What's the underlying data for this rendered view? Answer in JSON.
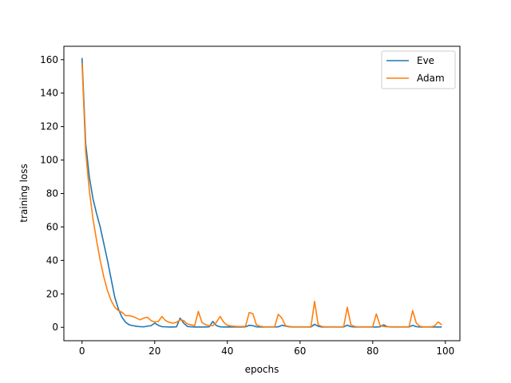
{
  "chart_data": {
    "type": "line",
    "title": "",
    "xlabel": "epochs",
    "ylabel": "training loss",
    "xlim": [
      -5,
      104
    ],
    "ylim": [
      -8,
      168
    ],
    "xticks": [
      0,
      20,
      40,
      60,
      80,
      100
    ],
    "yticks": [
      0,
      20,
      40,
      60,
      80,
      100,
      120,
      140,
      160
    ],
    "grid": false,
    "legend_position": "top-right",
    "series": [
      {
        "name": "Eve",
        "color": "#1f77b4",
        "x": [
          0,
          1,
          2,
          3,
          4,
          5,
          6,
          7,
          8,
          9,
          10,
          11,
          12,
          13,
          14,
          15,
          16,
          17,
          18,
          19,
          20,
          21,
          22,
          23,
          24,
          25,
          26,
          27,
          28,
          29,
          30,
          31,
          32,
          33,
          34,
          35,
          36,
          37,
          38,
          39,
          40,
          41,
          42,
          43,
          44,
          45,
          46,
          47,
          48,
          49,
          50,
          51,
          52,
          53,
          54,
          55,
          56,
          57,
          58,
          59,
          60,
          61,
          62,
          63,
          64,
          65,
          66,
          67,
          68,
          69,
          70,
          71,
          72,
          73,
          74,
          75,
          76,
          77,
          78,
          79,
          80,
          81,
          82,
          83,
          84,
          85,
          86,
          87,
          88,
          89,
          90,
          91,
          92,
          93,
          94,
          95,
          96,
          97,
          98,
          99
        ],
        "y": [
          161,
          110,
          90,
          77,
          68,
          60,
          50,
          40,
          29,
          18,
          11,
          6,
          3,
          1.5,
          1,
          0.6,
          0.4,
          0.3,
          0.7,
          1,
          2.5,
          1.2,
          0.4,
          0.3,
          0.2,
          0.2,
          0.3,
          5.5,
          2.5,
          0.5,
          0.3,
          0.2,
          0.2,
          0.2,
          0.2,
          0.3,
          3.5,
          1,
          0.3,
          0.2,
          0.2,
          0.2,
          0.2,
          0.2,
          0.2,
          0.3,
          1.2,
          1,
          0.3,
          0.2,
          0.2,
          0.2,
          0.2,
          0.2,
          0.3,
          1.2,
          0.8,
          0.3,
          0.2,
          0.2,
          0.2,
          0.2,
          0.2,
          0.2,
          1.8,
          0.6,
          0.2,
          0.2,
          0.2,
          0.2,
          0.2,
          0.2,
          0.2,
          1.3,
          0.4,
          0.2,
          0.2,
          0.2,
          0.2,
          0.2,
          0.2,
          0.2,
          0.3,
          1.5,
          0.4,
          0.2,
          0.2,
          0.2,
          0.2,
          0.2,
          0.2,
          1.2,
          0.4,
          0.2,
          0.2,
          0.2,
          0.2,
          0.2,
          0.2,
          0.2
        ]
      },
      {
        "name": "Adam",
        "color": "#ff7f0e",
        "x": [
          0,
          1,
          2,
          3,
          4,
          5,
          6,
          7,
          8,
          9,
          10,
          11,
          12,
          13,
          14,
          15,
          16,
          17,
          18,
          19,
          20,
          21,
          22,
          23,
          24,
          25,
          26,
          27,
          28,
          29,
          30,
          31,
          32,
          33,
          34,
          35,
          36,
          37,
          38,
          39,
          40,
          41,
          42,
          43,
          44,
          45,
          46,
          47,
          48,
          49,
          50,
          51,
          52,
          53,
          54,
          55,
          56,
          57,
          58,
          59,
          60,
          61,
          62,
          63,
          64,
          65,
          66,
          67,
          68,
          69,
          70,
          71,
          72,
          73,
          74,
          75,
          76,
          77,
          78,
          79,
          80,
          81,
          82,
          83,
          84,
          85,
          86,
          87,
          88,
          89,
          90,
          91,
          92,
          93,
          94,
          95,
          96,
          97,
          98,
          99
        ],
        "y": [
          158,
          105,
          82,
          65,
          52,
          40,
          30,
          22,
          16,
          12,
          10,
          9,
          7,
          7,
          6.5,
          5.5,
          4.5,
          5.5,
          6,
          4,
          3.2,
          3.5,
          6.5,
          4,
          3,
          2.5,
          3,
          4.5,
          4,
          2,
          1.5,
          1,
          9.5,
          3,
          1.5,
          1,
          1,
          3,
          6.5,
          3,
          1.2,
          0.8,
          0.6,
          0.5,
          0.5,
          0.6,
          8.8,
          8.2,
          1.5,
          0.6,
          0.4,
          0.3,
          0.3,
          0.3,
          7.8,
          5.5,
          1,
          0.5,
          0.3,
          0.3,
          0.3,
          0.3,
          0.3,
          0.3,
          15.5,
          1.5,
          0.5,
          0.3,
          0.3,
          0.3,
          0.3,
          0.3,
          0.3,
          12,
          1.5,
          0.5,
          0.3,
          0.3,
          0.3,
          0.3,
          0.3,
          8,
          1.2,
          0.5,
          0.3,
          0.3,
          0.3,
          0.3,
          0.3,
          0.3,
          0.3,
          10,
          2.5,
          0.6,
          0.3,
          0.3,
          0.3,
          0.8,
          3.2,
          1.5
        ]
      }
    ]
  }
}
